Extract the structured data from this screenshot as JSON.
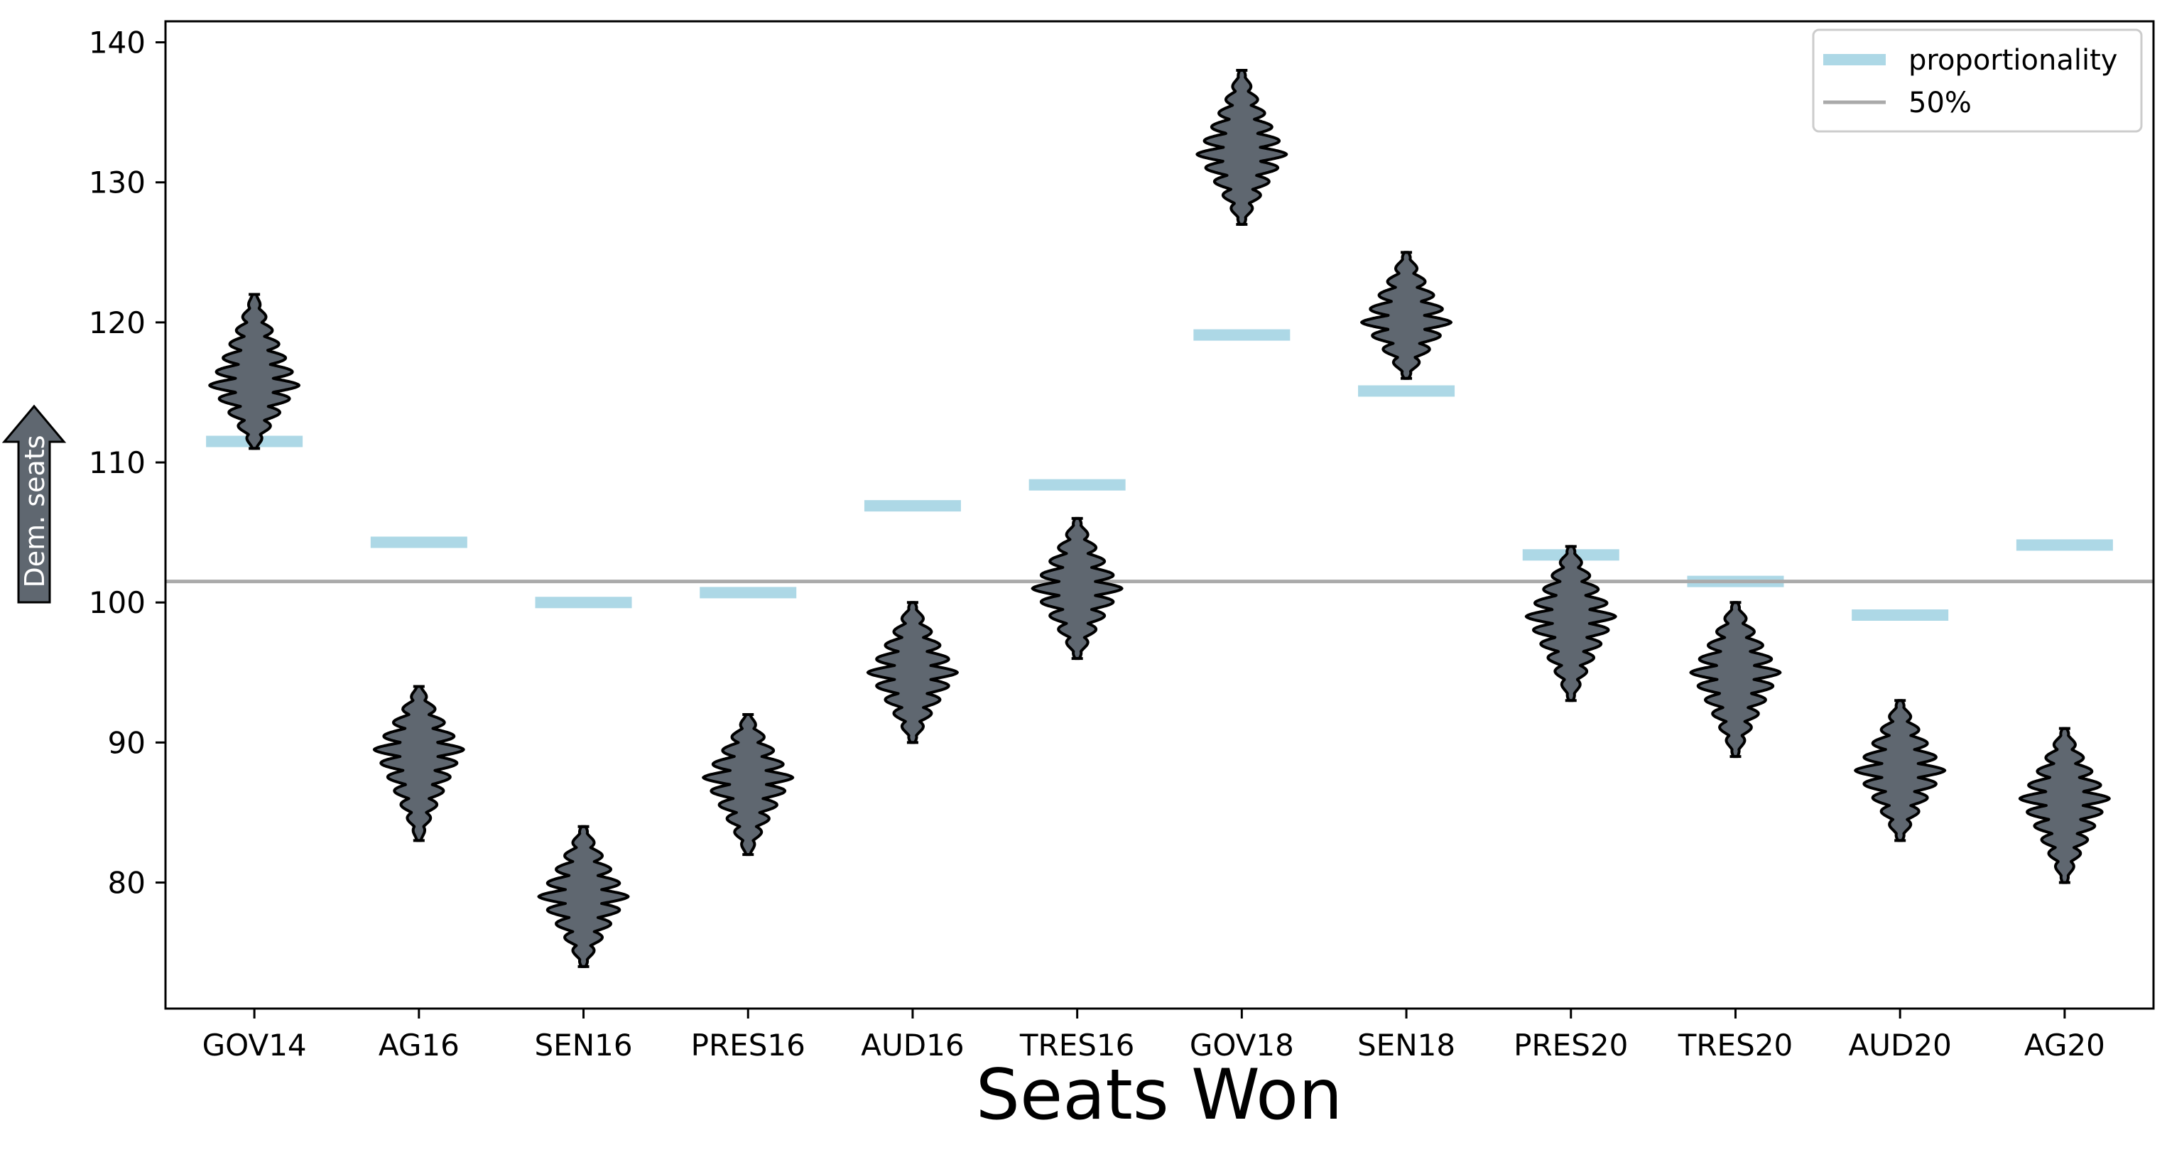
{
  "chart_data": {
    "type": "violin",
    "xlabel": "Seats Won",
    "ylabel_arrow": "Dem. seats",
    "ylim": [
      71,
      141.5
    ],
    "yticks": [
      80,
      90,
      100,
      110,
      120,
      130,
      140
    ],
    "categories": [
      "GOV14",
      "AG16",
      "SEN16",
      "PRES16",
      "AUD16",
      "TRES16",
      "GOV18",
      "SEN18",
      "PRES20",
      "TRES20",
      "AUD20",
      "AG20"
    ],
    "violin_min": [
      111,
      83,
      74,
      82,
      90,
      96,
      127,
      116,
      93,
      89,
      83,
      80
    ],
    "violin_max": [
      122,
      94,
      84,
      92,
      100,
      106,
      138,
      125,
      104,
      100,
      93,
      91
    ],
    "violin_center": [
      115.5,
      89.5,
      79,
      87.5,
      95,
      101,
      132,
      120,
      99,
      95,
      88,
      86
    ],
    "proportionality": [
      111.5,
      104.3,
      100,
      100.7,
      106.9,
      108.4,
      119.1,
      115.1,
      103.4,
      101.5,
      99.1,
      104.1
    ],
    "fifty_percent": 101.5,
    "legend": {
      "position": "upper right",
      "entries": [
        {
          "label": "proportionality",
          "color": "#add8e6"
        },
        {
          "label": "50%",
          "color": "#aaaaaa"
        }
      ]
    },
    "colors": {
      "violin_fill": "#5f6770",
      "violin_edge": "#000000",
      "proportionality": "#add8e6",
      "fifty_line": "#aaaaaa",
      "arrow_fill": "#5f6770"
    }
  }
}
